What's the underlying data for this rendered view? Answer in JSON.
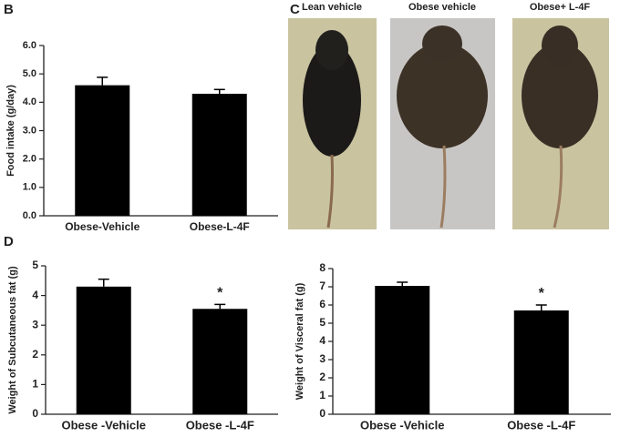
{
  "panel_labels": [
    "B",
    "C",
    "D"
  ],
  "photos": [
    {
      "label": "Lean vehicle"
    },
    {
      "label": "Obese vehicle"
    },
    {
      "label": "Obese+ L-4F"
    }
  ],
  "chart_data": [
    {
      "type": "bar",
      "ylabel": "Food intake (g/day)",
      "categories": [
        "Obese-Vehicle",
        "Obese-L-4F"
      ],
      "values": [
        4.6,
        4.3
      ],
      "errors": [
        0.28,
        0.15
      ],
      "color": "#000000",
      "ylim": [
        0,
        6
      ],
      "yticks": [
        {
          "value": 0,
          "label": "0.0"
        },
        {
          "value": 1,
          "label": "1.0"
        },
        {
          "value": 2,
          "label": "2.0"
        },
        {
          "value": 3,
          "label": "3.0"
        },
        {
          "value": 4,
          "label": "4.0"
        },
        {
          "value": 5,
          "label": "5.0"
        },
        {
          "value": 6,
          "label": "6.0"
        }
      ]
    },
    {
      "type": "bar",
      "ylabel": "Weight of Subcutaneous fat (g)",
      "categories": [
        "Obese -Vehicle",
        "Obese -L-4F"
      ],
      "values": [
        4.3,
        3.55
      ],
      "errors": [
        0.25,
        0.15
      ],
      "color": "#000000",
      "ylim": [
        0,
        5
      ],
      "yticks": [
        0,
        1,
        2,
        3,
        4,
        5
      ],
      "annotations": [
        {
          "category": "Obese -L-4F",
          "text": "*"
        }
      ]
    },
    {
      "type": "bar",
      "ylabel": "Weight of Visceral fat (g)",
      "categories": [
        "Obese -Vehicle",
        "Obese -L-4F"
      ],
      "values": [
        7.05,
        5.7
      ],
      "errors": [
        0.2,
        0.3
      ],
      "color": "#000000",
      "ylim": [
        0,
        8
      ],
      "yticks": [
        0,
        1,
        2,
        3,
        4,
        5,
        6,
        7,
        8
      ],
      "annotations": [
        {
          "category": "Obese -L-4F",
          "text": "*"
        }
      ]
    }
  ]
}
